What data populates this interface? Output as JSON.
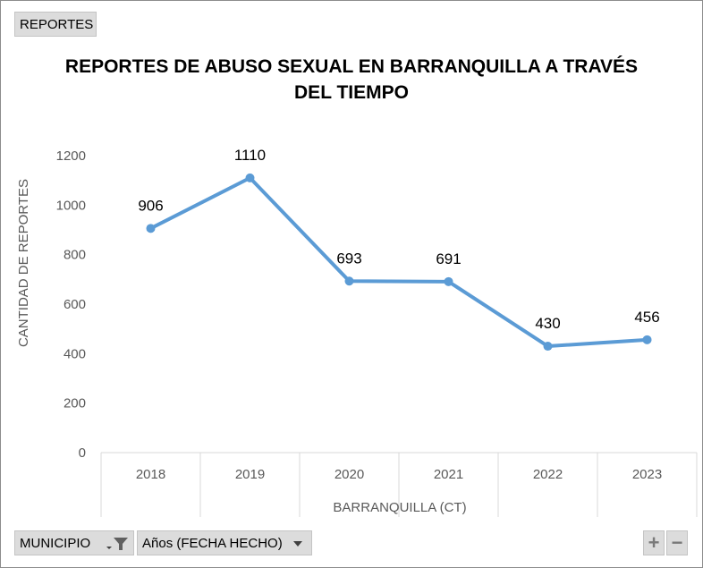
{
  "pivot": {
    "reportes_label": "REPORTES",
    "municipio_label": "MUNICIPIO",
    "anios_label": "Años (FECHA HECHO)",
    "zoom_in": "+",
    "zoom_out": "−"
  },
  "chart_data": {
    "type": "line",
    "title_line1": "REPORTES DE ABUSO SEXUAL EN BARRANQUILLA A TRAVÉS",
    "title_line2": "DEL TIEMPO",
    "ylabel": "CANTIDAD DE REPORTES",
    "xlabel": "BARRANQUILLA (CT)",
    "categories": [
      "2018",
      "2019",
      "2020",
      "2021",
      "2022",
      "2023"
    ],
    "series": [
      {
        "values": [
          906,
          1110,
          693,
          691,
          430,
          456
        ],
        "color": "#5b9bd5"
      }
    ],
    "ylim": [
      0,
      1200
    ],
    "yticks": [
      0,
      200,
      400,
      600,
      800,
      1000,
      1200
    ],
    "grid": false,
    "legend": "none"
  }
}
